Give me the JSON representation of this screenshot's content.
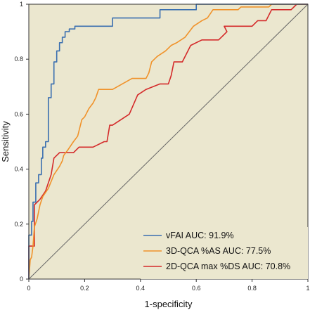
{
  "chart_data": {
    "type": "line",
    "title": "",
    "xlabel": "1-specificity",
    "ylabel": "Sensitivity",
    "xlim": [
      0,
      1
    ],
    "ylim": [
      0,
      1
    ],
    "x_ticks": [
      "0",
      "0.2",
      "0.4",
      "0.6",
      "0.8",
      "1"
    ],
    "y_ticks": [
      "0",
      "0.2",
      "0.4",
      "0.6",
      "0.8",
      "1"
    ],
    "grid": false,
    "background": "#ebe7cf",
    "legend_position": "bottom-right",
    "reference_line": {
      "from": [
        0,
        0
      ],
      "to": [
        1,
        1
      ],
      "color": "#666666"
    },
    "series": [
      {
        "name": "vFAI AUC: 91.9%",
        "color": "#3a6fb0",
        "points": [
          [
            0,
            0
          ],
          [
            0,
            0.16
          ],
          [
            0.01,
            0.16
          ],
          [
            0.01,
            0.21
          ],
          [
            0.015,
            0.21
          ],
          [
            0.015,
            0.28
          ],
          [
            0.025,
            0.28
          ],
          [
            0.025,
            0.35
          ],
          [
            0.035,
            0.35
          ],
          [
            0.035,
            0.38
          ],
          [
            0.045,
            0.38
          ],
          [
            0.045,
            0.44
          ],
          [
            0.05,
            0.44
          ],
          [
            0.05,
            0.48
          ],
          [
            0.06,
            0.48
          ],
          [
            0.06,
            0.5
          ],
          [
            0.07,
            0.5
          ],
          [
            0.07,
            0.66
          ],
          [
            0.08,
            0.66
          ],
          [
            0.08,
            0.71
          ],
          [
            0.09,
            0.71
          ],
          [
            0.09,
            0.79
          ],
          [
            0.1,
            0.79
          ],
          [
            0.1,
            0.83
          ],
          [
            0.11,
            0.83
          ],
          [
            0.11,
            0.86
          ],
          [
            0.12,
            0.86
          ],
          [
            0.12,
            0.88
          ],
          [
            0.13,
            0.88
          ],
          [
            0.13,
            0.9
          ],
          [
            0.145,
            0.9
          ],
          [
            0.145,
            0.91
          ],
          [
            0.165,
            0.91
          ],
          [
            0.165,
            0.92
          ],
          [
            0.3,
            0.92
          ],
          [
            0.3,
            0.95
          ],
          [
            0.47,
            0.95
          ],
          [
            0.47,
            0.98
          ],
          [
            0.6,
            0.98
          ],
          [
            0.6,
            1
          ],
          [
            1,
            1
          ]
        ]
      },
      {
        "name": "3D-QCA %AS AUC: 77.5%",
        "color": "#f0922a",
        "points": [
          [
            0,
            0
          ],
          [
            0.005,
            0.07
          ],
          [
            0.01,
            0.08
          ],
          [
            0.015,
            0.12
          ],
          [
            0.02,
            0.19
          ],
          [
            0.03,
            0.22
          ],
          [
            0.04,
            0.27
          ],
          [
            0.05,
            0.3
          ],
          [
            0.07,
            0.33
          ],
          [
            0.09,
            0.38
          ],
          [
            0.11,
            0.41
          ],
          [
            0.12,
            0.43
          ],
          [
            0.125,
            0.45
          ],
          [
            0.14,
            0.47
          ],
          [
            0.16,
            0.5
          ],
          [
            0.175,
            0.52
          ],
          [
            0.19,
            0.58
          ],
          [
            0.2,
            0.59
          ],
          [
            0.215,
            0.62
          ],
          [
            0.23,
            0.64
          ],
          [
            0.24,
            0.66
          ],
          [
            0.25,
            0.69
          ],
          [
            0.3,
            0.69
          ],
          [
            0.37,
            0.73
          ],
          [
            0.42,
            0.73
          ],
          [
            0.43,
            0.75
          ],
          [
            0.44,
            0.79
          ],
          [
            0.46,
            0.81
          ],
          [
            0.49,
            0.83
          ],
          [
            0.51,
            0.85
          ],
          [
            0.53,
            0.86
          ],
          [
            0.56,
            0.88
          ],
          [
            0.59,
            0.92
          ],
          [
            0.62,
            0.94
          ],
          [
            0.64,
            0.95
          ],
          [
            0.66,
            0.98
          ],
          [
            0.75,
            0.98
          ],
          [
            0.76,
            0.99
          ],
          [
            0.86,
            0.99
          ],
          [
            0.87,
            1
          ],
          [
            1,
            1
          ]
        ]
      },
      {
        "name": "2D-QCA max %DS AUC: 70.8%",
        "color": "#d42a2a",
        "points": [
          [
            0,
            0
          ],
          [
            0,
            0.12
          ],
          [
            0.02,
            0.12
          ],
          [
            0.02,
            0.27
          ],
          [
            0.04,
            0.29
          ],
          [
            0.06,
            0.32
          ],
          [
            0.08,
            0.38
          ],
          [
            0.09,
            0.44
          ],
          [
            0.11,
            0.46
          ],
          [
            0.16,
            0.46
          ],
          [
            0.18,
            0.48
          ],
          [
            0.23,
            0.48
          ],
          [
            0.27,
            0.5
          ],
          [
            0.28,
            0.5
          ],
          [
            0.29,
            0.56
          ],
          [
            0.3,
            0.56
          ],
          [
            0.36,
            0.6
          ],
          [
            0.39,
            0.67
          ],
          [
            0.42,
            0.69
          ],
          [
            0.47,
            0.71
          ],
          [
            0.5,
            0.71
          ],
          [
            0.51,
            0.74
          ],
          [
            0.52,
            0.79
          ],
          [
            0.55,
            0.79
          ],
          [
            0.58,
            0.85
          ],
          [
            0.62,
            0.87
          ],
          [
            0.68,
            0.87
          ],
          [
            0.7,
            0.89
          ],
          [
            0.71,
            0.9
          ],
          [
            0.7,
            0.92
          ],
          [
            0.8,
            0.92
          ],
          [
            0.82,
            0.94
          ],
          [
            0.85,
            0.94
          ],
          [
            0.87,
            0.98
          ],
          [
            0.94,
            0.98
          ],
          [
            0.96,
            1
          ],
          [
            1,
            1
          ]
        ]
      }
    ]
  }
}
